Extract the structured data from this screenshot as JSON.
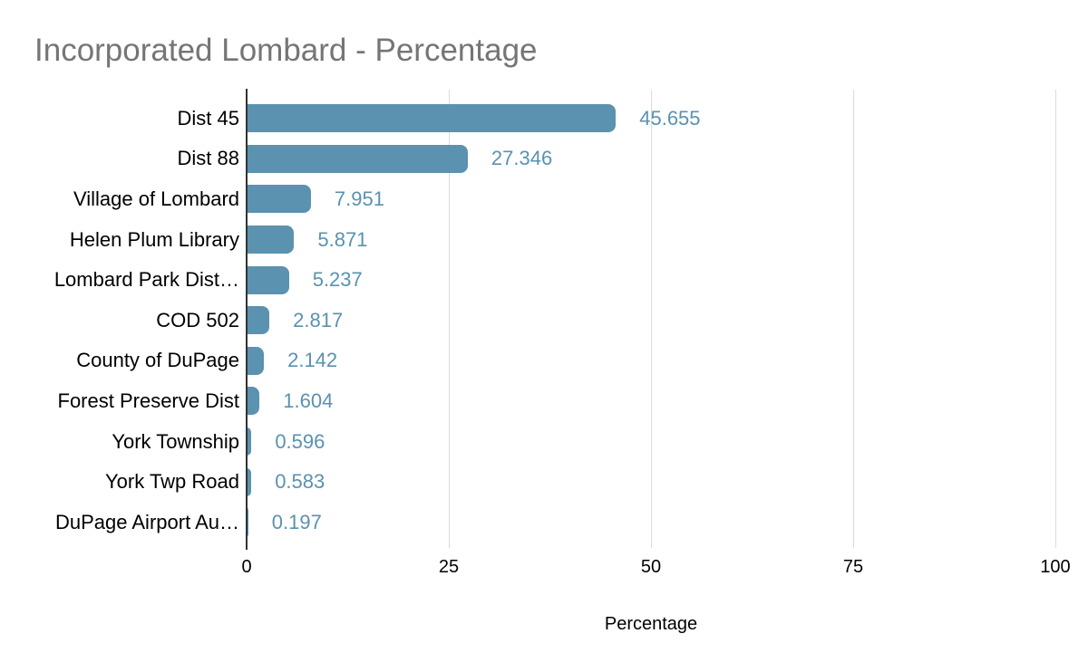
{
  "title": "Incorporated Lombard - Percentage",
  "chart_data": {
    "type": "bar",
    "orientation": "horizontal",
    "title": "Incorporated Lombard - Percentage",
    "xlabel": "Percentage",
    "ylabel": "",
    "xlim": [
      0,
      100
    ],
    "xticks": [
      "0",
      "25",
      "50",
      "75",
      "100"
    ],
    "xtick_values": [
      0,
      25,
      50,
      75,
      100
    ],
    "grid": "vertical-gridlines-on",
    "legend": "none",
    "categories": [
      "Dist 45",
      "Dist 88",
      "Village of Lombard",
      "Helen Plum Library",
      "Lombard Park Dist…",
      "COD 502",
      "County of DuPage",
      "Forest Preserve Dist",
      "York Township",
      "York Twp Road",
      "DuPage Airport Au…"
    ],
    "values": [
      45.655,
      27.346,
      7.951,
      5.871,
      5.237,
      2.817,
      2.142,
      1.604,
      0.596,
      0.583,
      0.197
    ],
    "value_labels": [
      "45.655",
      "27.346",
      "7.951",
      "5.871",
      "5.237",
      "2.817",
      "2.142",
      "1.604",
      "0.596",
      "0.583",
      "0.197"
    ],
    "colors": {
      "bar": "#5A92B0",
      "value_label": "#5A92B0",
      "title": "#757575",
      "axis_line": "#333333",
      "gridline": "#dadce0",
      "tick_label": "#000000",
      "background": "#ffffff"
    }
  }
}
